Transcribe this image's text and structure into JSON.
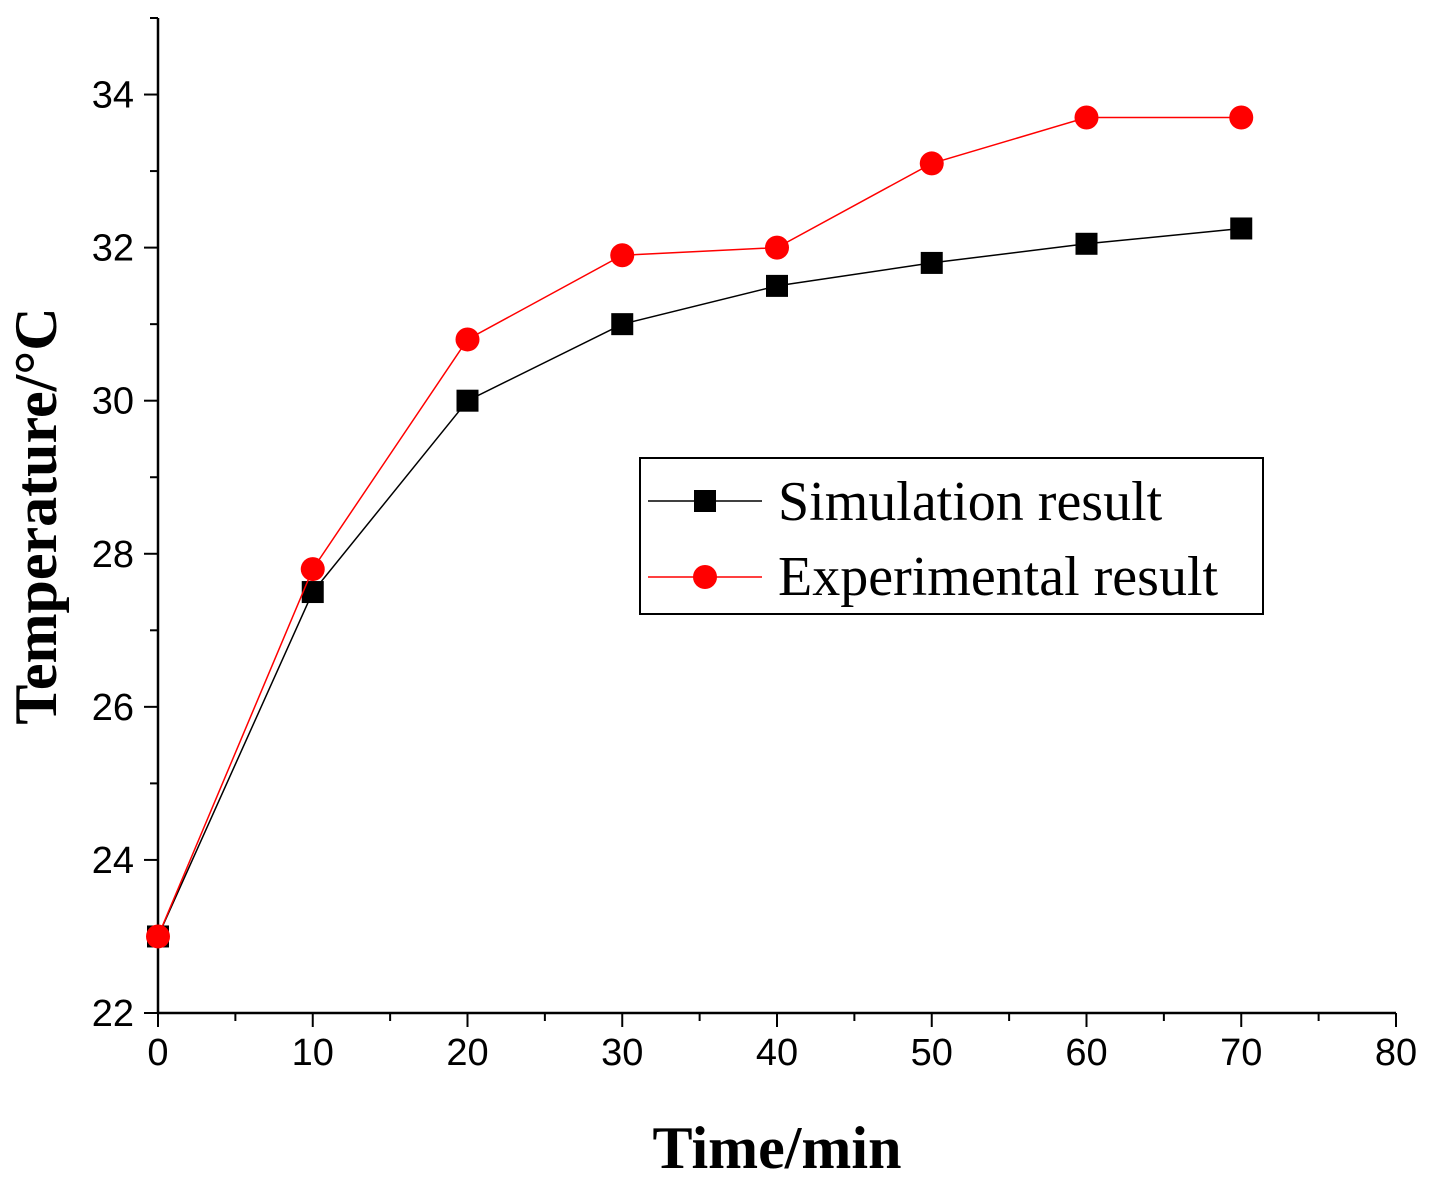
{
  "chart_data": {
    "type": "line",
    "xlabel": "Time/min",
    "ylabel": "Temperature/°C",
    "xlim": [
      0,
      80
    ],
    "ylim": [
      22,
      35
    ],
    "x_ticks": [
      0,
      10,
      20,
      30,
      40,
      50,
      60,
      70,
      80
    ],
    "y_ticks": [
      22,
      24,
      26,
      28,
      30,
      32,
      34
    ],
    "x_minor_step": 5,
    "y_minor_step": 1,
    "grid": false,
    "legend_position": "center-right",
    "series": [
      {
        "name": "Simulation result",
        "color": "#000000",
        "marker": "square",
        "x": [
          0,
          10,
          20,
          30,
          40,
          50,
          60,
          70
        ],
        "y": [
          23.0,
          27.5,
          30.0,
          31.0,
          31.5,
          31.8,
          32.05,
          32.25
        ]
      },
      {
        "name": "Experimental result",
        "color": "#ff0000",
        "marker": "circle",
        "x": [
          0,
          10,
          20,
          30,
          40,
          50,
          60,
          70
        ],
        "y": [
          23.0,
          27.8,
          30.8,
          31.9,
          32.0,
          33.1,
          33.7,
          33.7
        ]
      }
    ]
  }
}
